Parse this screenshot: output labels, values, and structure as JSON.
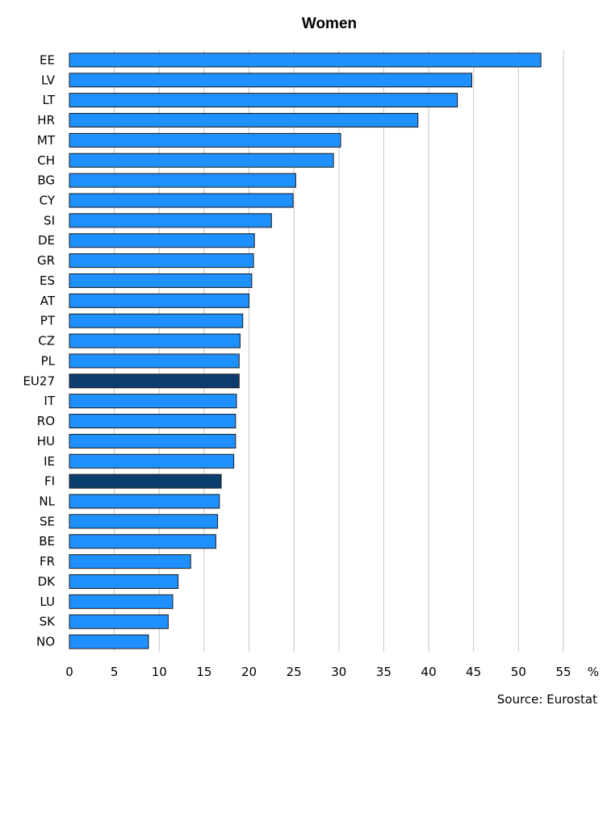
{
  "chart_data": {
    "type": "bar",
    "orientation": "horizontal",
    "title": "Women",
    "xlabel": "",
    "unit_label": "%",
    "source": "Source: Eurostat",
    "categories": [
      "EE",
      "LV",
      "LT",
      "HR",
      "MT",
      "CH",
      "BG",
      "CY",
      "SI",
      "DE",
      "GR",
      "ES",
      "AT",
      "PT",
      "CZ",
      "PL",
      "EU27",
      "IT",
      "RO",
      "HU",
      "IE",
      "FI",
      "NL",
      "SE",
      "BE",
      "FR",
      "DK",
      "LU",
      "SK",
      "NO"
    ],
    "values": [
      52.5,
      44.8,
      43.2,
      38.8,
      30.2,
      29.4,
      25.2,
      24.9,
      22.5,
      20.6,
      20.5,
      20.3,
      20.0,
      19.3,
      19.0,
      18.9,
      18.9,
      18.6,
      18.5,
      18.5,
      18.3,
      16.9,
      16.7,
      16.5,
      16.3,
      13.5,
      12.1,
      11.5,
      11.0,
      8.8
    ],
    "highlighted": [
      "EU27",
      "FI"
    ],
    "xlim": [
      0,
      55
    ],
    "xticks": [
      0,
      5,
      10,
      15,
      20,
      25,
      30,
      35,
      40,
      45,
      50,
      55
    ],
    "grid": true,
    "colors": {
      "bar": "#1e90ff",
      "bar_highlight": "#0b3d6e",
      "grid": "#c8c8c8"
    }
  }
}
